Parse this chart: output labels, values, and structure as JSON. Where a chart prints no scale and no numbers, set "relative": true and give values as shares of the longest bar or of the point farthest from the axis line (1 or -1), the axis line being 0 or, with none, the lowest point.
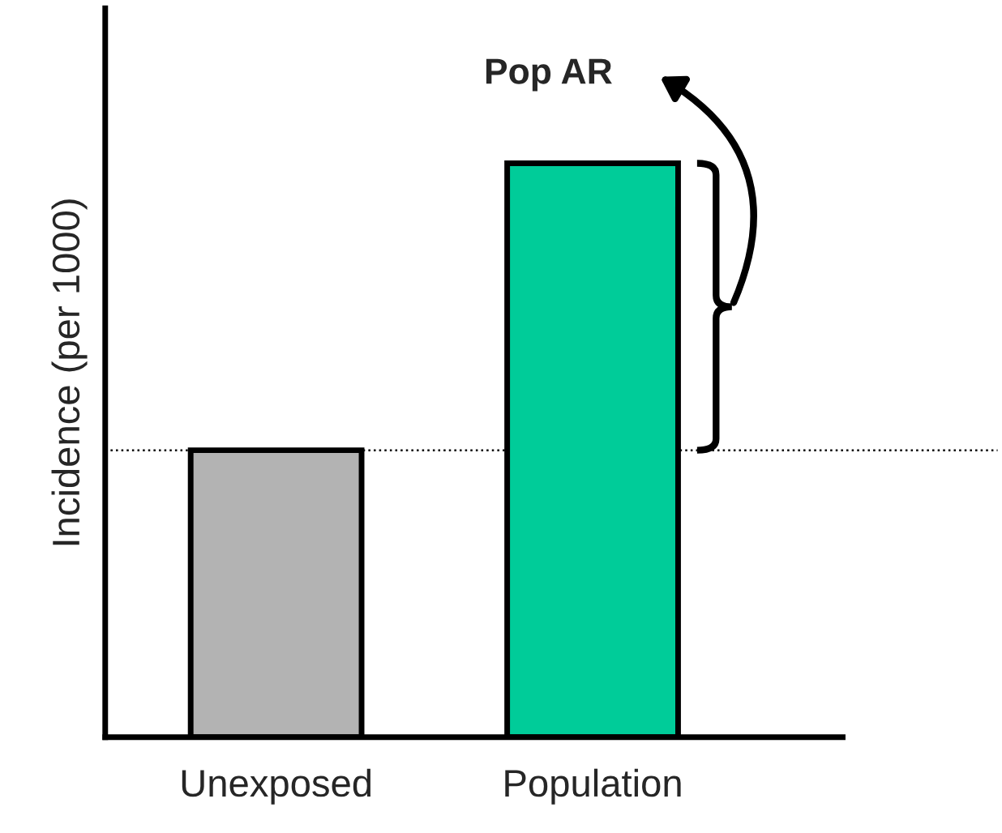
{
  "chart_data": {
    "type": "bar",
    "relative": true,
    "ylabel": "Incidence (per 1000)",
    "categories": [
      "Unexposed",
      "Population"
    ],
    "values": [
      0.5,
      1
    ],
    "colors": [
      "#b3b3b3",
      "#00cc99"
    ],
    "ref_lines": [
      {
        "axis": "y",
        "value": 0.5,
        "color": "#000000",
        "line_style": "dotted"
      }
    ],
    "annotations": [
      "Pop AR"
    ],
    "grid": false,
    "legend": false
  }
}
